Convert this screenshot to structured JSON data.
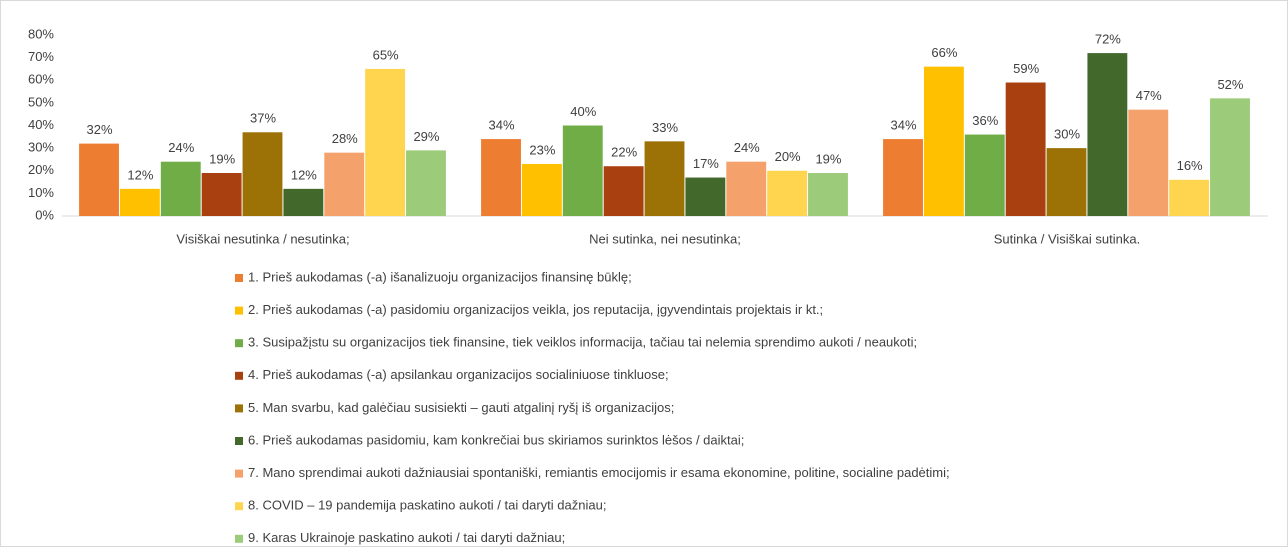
{
  "chart_data": {
    "type": "bar",
    "categories": [
      "Visiškai nesutinka / nesutinka;",
      "Nei sutinka, nei nesutinka;",
      "Sutinka / Visiškai sutinka."
    ],
    "series": [
      {
        "name": "1. Prieš aukodamas (-a) išanalizuoju organizacijos finansinę būklę;",
        "color": "#ed7d31",
        "values": [
          32,
          34,
          34
        ],
        "value_labels": [
          "32%",
          "34%",
          "34%"
        ]
      },
      {
        "name": "2. Prieš aukodamas (-a) pasidomiu organizacijos veikla, jos reputacija, įgyvendintais projektais ir kt.;",
        "color": "#ffc000",
        "values": [
          12,
          23,
          66
        ],
        "value_labels": [
          "12%",
          "23%",
          "66%"
        ]
      },
      {
        "name": "3. Susipažįstu su organizacijos tiek finansine, tiek veiklos informacija, tačiau tai nelemia sprendimo aukoti / neaukoti;",
        "color": "#70ad47",
        "values": [
          24,
          40,
          36
        ],
        "value_labels": [
          "24%",
          "40%",
          "36%"
        ]
      },
      {
        "name": "4. Prieš aukodamas (-a) apsilankau organizacijos socialiniuose tinkluose;",
        "color": "#a8400f",
        "values": [
          19,
          22,
          59
        ],
        "value_labels": [
          "19%",
          "22%",
          "59%"
        ]
      },
      {
        "name": "5. Man svarbu, kad galėčiau susisiekti – gauti atgalinį ryšį iš organizacijos;",
        "color": "#9c7207",
        "values": [
          37,
          33,
          30
        ],
        "value_labels": [
          "37%",
          "33%",
          "30%"
        ]
      },
      {
        "name": "6. Prieš aukodamas pasidomiu, kam konkrečiai bus skiriamos surinktos lėšos / daiktai;",
        "color": "#43682b",
        "values": [
          12,
          17,
          72
        ],
        "value_labels": [
          "12%",
          "17%",
          "72%"
        ]
      },
      {
        "name": "7. Mano sprendimai aukoti dažniausiai spontaniški, remiantis emocijomis ir esama ekonomine, politine, socialine padėtimi;",
        "color": "#f4a16b",
        "values": [
          28,
          24,
          47
        ],
        "value_labels": [
          "28%",
          "24%",
          "47%"
        ]
      },
      {
        "name": "8. COVID – 19 pandemija paskatino aukoti / tai daryti dažniau;",
        "color": "#ffd54f",
        "values": [
          65,
          20,
          16
        ],
        "value_labels": [
          "65%",
          "20%",
          "16%"
        ]
      },
      {
        "name": "9. Karas Ukrainoje paskatino aukoti / tai daryti dažniau;",
        "color": "#9ccc7a",
        "values": [
          29,
          19,
          52
        ],
        "value_labels": [
          "29%",
          "19%",
          "52%"
        ]
      }
    ],
    "ylim": [
      0,
      80
    ],
    "yticks": [
      {
        "value": 0,
        "label": "0%"
      },
      {
        "value": 10,
        "label": "10%"
      },
      {
        "value": 20,
        "label": "20%"
      },
      {
        "value": 30,
        "label": "30%"
      },
      {
        "value": 40,
        "label": "40%"
      },
      {
        "value": 50,
        "label": "50%"
      },
      {
        "value": 60,
        "label": "60%"
      },
      {
        "value": 70,
        "label": "70%"
      },
      {
        "value": 80,
        "label": "80%"
      }
    ],
    "grid": false
  }
}
